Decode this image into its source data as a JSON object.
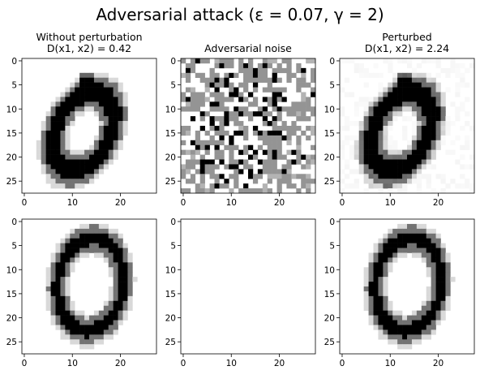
{
  "figure": {
    "title": "Adversarial attack (ε = 0.07,  γ = 2)"
  },
  "panels": [
    {
      "title_lines": [
        "Without perturbation",
        "D(x1, x2) = 0.42"
      ],
      "kind": "digit_a",
      "noise": 0
    },
    {
      "title_lines": [
        "Adversarial noise"
      ],
      "kind": "noise",
      "noise": 1
    },
    {
      "title_lines": [
        "Perturbed",
        "D(x1, x2) = 2.24"
      ],
      "kind": "digit_a",
      "noise": 0.06
    },
    {
      "title_lines": [],
      "kind": "digit_b",
      "noise": 0
    },
    {
      "title_lines": [],
      "kind": "blank",
      "noise": 0
    },
    {
      "title_lines": [],
      "kind": "digit_b",
      "noise": 0
    }
  ],
  "axes": {
    "image_size": 28,
    "x_ticks": [
      0,
      10,
      20
    ],
    "y_ticks": [
      0,
      5,
      10,
      15,
      20,
      25
    ]
  },
  "colors": {
    "ink": "#000000",
    "background": "#ffffff",
    "frame": "#000000"
  }
}
